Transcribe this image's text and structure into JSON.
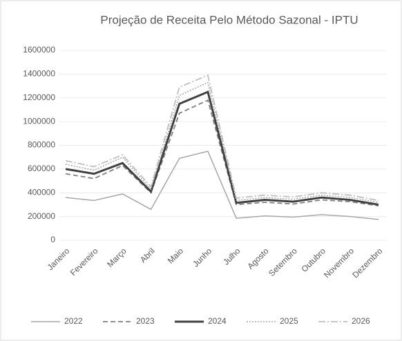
{
  "chart_data": {
    "type": "line",
    "title": "Projeção de Receita Pelo Método Sazonal - IPTU",
    "categories": [
      "Janeiro",
      "Fevereiro",
      "Março",
      "Abril",
      "Maio",
      "Junho",
      "Julho",
      "Agosto",
      "Setembro",
      "Outubro",
      "Novembro",
      "Dezembro"
    ],
    "series": [
      {
        "name": "2022",
        "color": "#a6a6a6",
        "width": 1.5,
        "dash": "none",
        "values": [
          360000,
          335000,
          390000,
          260000,
          690000,
          750000,
          185000,
          205000,
          195000,
          215000,
          200000,
          175000
        ]
      },
      {
        "name": "2023",
        "color": "#7f7f7f",
        "width": 1.8,
        "dash": "7 4",
        "values": [
          560000,
          520000,
          630000,
          400000,
          1070000,
          1180000,
          300000,
          320000,
          305000,
          340000,
          325000,
          290000
        ]
      },
      {
        "name": "2024",
        "color": "#404040",
        "width": 3,
        "dash": "none",
        "values": [
          600000,
          560000,
          650000,
          410000,
          1150000,
          1250000,
          315000,
          340000,
          325000,
          360000,
          340000,
          300000
        ]
      },
      {
        "name": "2025",
        "color": "#a6a6a6",
        "width": 1.5,
        "dash": "2 2",
        "values": [
          640000,
          590000,
          700000,
          430000,
          1220000,
          1330000,
          335000,
          360000,
          345000,
          380000,
          360000,
          320000
        ]
      },
      {
        "name": "2026",
        "color": "#bfbfbf",
        "width": 1.8,
        "dash": "10 3 2 3",
        "values": [
          670000,
          620000,
          720000,
          450000,
          1290000,
          1390000,
          355000,
          380000,
          365000,
          400000,
          380000,
          335000
        ]
      }
    ],
    "ylim": [
      0,
      1600000
    ],
    "yticks": [
      0,
      200000,
      400000,
      600000,
      800000,
      1000000,
      1200000,
      1400000,
      1600000
    ],
    "grid": true,
    "legend": "bottom"
  }
}
